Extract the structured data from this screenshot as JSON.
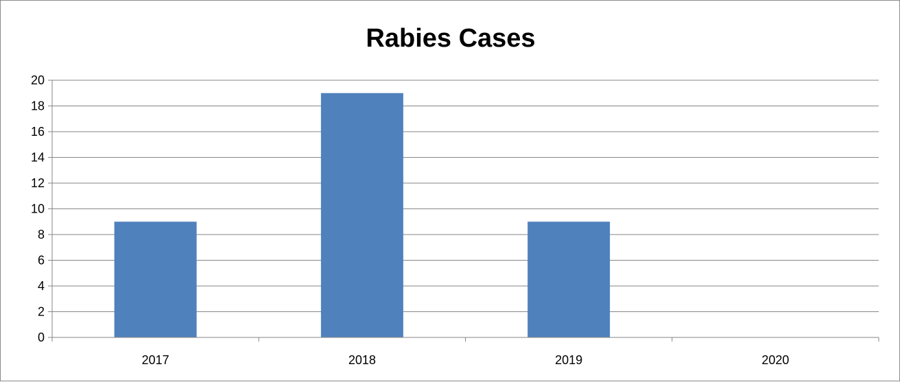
{
  "chart_data": {
    "type": "bar",
    "title": "Rabies Cases",
    "xlabel": "",
    "ylabel": "",
    "categories": [
      "2017",
      "2018",
      "2019",
      "2020"
    ],
    "values": [
      9,
      19,
      9,
      0
    ],
    "ylim": [
      0,
      20
    ],
    "yticks": [
      "0",
      "2",
      "4",
      "6",
      "8",
      "10",
      "12",
      "14",
      "16",
      "18",
      "20"
    ],
    "grid": true,
    "legend": "none",
    "bar_color": "#4f81bd",
    "grid_color": "#868686"
  }
}
